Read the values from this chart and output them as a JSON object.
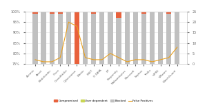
{
  "products": [
    "Acronis",
    "Avast",
    "Bitdefender",
    "Cisco",
    "CrowdStrike",
    "Cybereason",
    "Elastic",
    "ESET",
    "G DATA",
    "K7",
    "Kaspersky",
    "Malwarebytes",
    "Microsoft",
    "Sophos",
    "Trellix",
    "VIPRE",
    "VMware",
    "WatchGuard"
  ],
  "compromised": [
    1,
    0,
    1,
    1,
    0,
    35,
    0,
    1,
    0,
    0,
    3,
    0,
    0,
    1,
    0,
    0,
    1,
    0
  ],
  "user_dependent": [
    0,
    0,
    0,
    0,
    0,
    3,
    0,
    0,
    0,
    0,
    0,
    0,
    0,
    0,
    0,
    0,
    0,
    0
  ],
  "blocked": [
    99,
    100,
    99,
    99,
    100,
    62,
    100,
    99,
    100,
    100,
    97,
    100,
    100,
    99,
    100,
    100,
    99,
    100
  ],
  "false_positives": [
    2,
    1,
    1,
    3,
    20,
    18,
    3,
    2,
    2,
    5,
    3,
    1,
    2,
    2,
    1,
    2,
    3,
    8
  ],
  "bar_color_compromised": "#e8613c",
  "bar_color_user_dependent": "#c9d654",
  "bar_color_blocked": "#c0c0c0",
  "line_color": "#e8a020",
  "ylim_left": [
    75,
    100
  ],
  "ylim_right": [
    0,
    25
  ],
  "yticks_left": [
    75,
    80,
    85,
    90,
    95,
    100
  ],
  "yticks_right": [
    0,
    5,
    10,
    15,
    20,
    25
  ],
  "background_color": "#ffffff",
  "grid_color": "#dddddd"
}
